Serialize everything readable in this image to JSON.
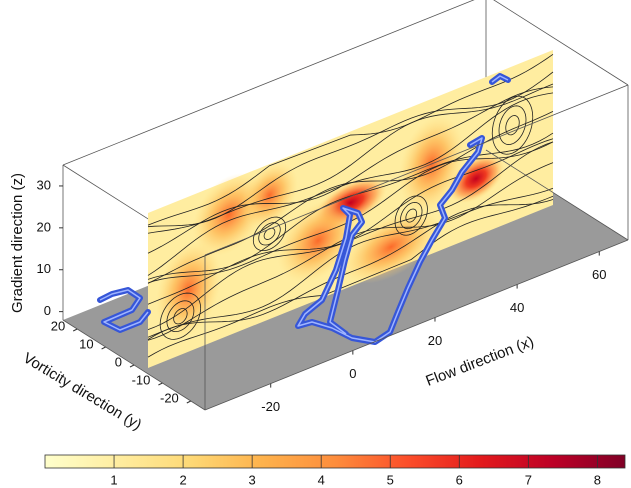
{
  "chart_data": {
    "type": "slice3d",
    "xlabel": "Flow direction (x)",
    "ylabel": "Vorticity direction (y)",
    "zlabel": "Gradient direction (z)",
    "xlim": [
      -36,
      67
    ],
    "xticks": [
      -20,
      0,
      20,
      40,
      60
    ],
    "ylim": [
      -25,
      25
    ],
    "yticks": [
      -20,
      -10,
      0,
      10,
      20
    ],
    "zlim": [
      -2,
      35
    ],
    "zticks": [
      0,
      10,
      20,
      30
    ],
    "colorbar": {
      "clim": [
        0,
        8.4
      ],
      "ticks": [
        1,
        2,
        3,
        4,
        5,
        6,
        7,
        8
      ],
      "colors": [
        "#ffffcc",
        "#ffeda0",
        "#fed976",
        "#feb24c",
        "#fd8d3c",
        "#fc4e2a",
        "#e31a1c",
        "#bd0026",
        "#800026"
      ]
    },
    "floor_color": "#9a9a9a",
    "tube_color": "#3656d8"
  }
}
